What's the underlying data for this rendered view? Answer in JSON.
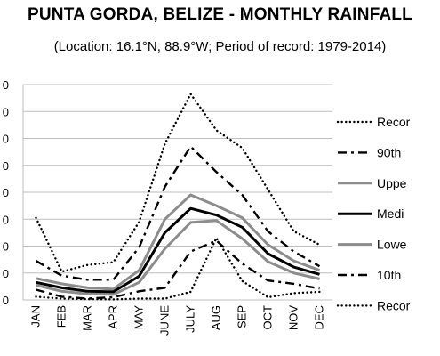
{
  "chart_data": {
    "type": "line",
    "title": "PUNTA GORDA, BELIZE - MONTHLY RAINFALL",
    "subtitle": "(Location: 16.1°N, 88.9°W; Period of record: 1979-2014)",
    "categories": [
      "JAN",
      "FEB",
      "MAR",
      "APR",
      "MAY",
      "JUNE",
      "JULY",
      "AUG",
      "SEP",
      "OCT",
      "NOV",
      "DEC"
    ],
    "y_ticks": [
      "0",
      "0",
      "0",
      "0",
      "0",
      "0",
      "0",
      "0",
      "0"
    ],
    "grid": true,
    "legend_position": "right",
    "series": [
      {
        "name": "Recor",
        "style": "record-high",
        "color": "#000000",
        "dash": "dot",
        "values": [
          3.05,
          1.05,
          1.3,
          1.4,
          2.9,
          5.8,
          7.65,
          6.3,
          5.65,
          4.1,
          2.55,
          2.05
        ]
      },
      {
        "name": "90th",
        "style": "90th",
        "color": "#000000",
        "dash": "dashdot",
        "values": [
          1.45,
          0.9,
          0.75,
          0.75,
          1.95,
          4.2,
          5.7,
          4.75,
          3.9,
          2.55,
          1.8,
          1.25
        ]
      },
      {
        "name": "Uppe",
        "style": "upper-quartile",
        "color": "#8c8c8c",
        "dash": "solid",
        "values": [
          0.8,
          0.6,
          0.45,
          0.4,
          1.1,
          3.0,
          3.9,
          3.5,
          3.05,
          2.05,
          1.45,
          1.1
        ]
      },
      {
        "name": "Medi",
        "style": "median",
        "color": "#000000",
        "dash": "solid",
        "values": [
          0.65,
          0.45,
          0.32,
          0.3,
          0.88,
          2.5,
          3.4,
          3.15,
          2.7,
          1.72,
          1.22,
          0.95
        ]
      },
      {
        "name": "Lowe",
        "style": "lower-quartile",
        "color": "#8c8c8c",
        "dash": "solid",
        "values": [
          0.55,
          0.32,
          0.22,
          0.2,
          0.65,
          1.9,
          2.88,
          2.95,
          2.28,
          1.42,
          1.0,
          0.78
        ]
      },
      {
        "name": "10th",
        "style": "10th",
        "color": "#000000",
        "dash": "dashdot",
        "values": [
          0.38,
          0.12,
          0.05,
          0.1,
          0.32,
          0.45,
          1.8,
          2.2,
          1.35,
          0.72,
          0.6,
          0.42
        ]
      },
      {
        "name": "Recor",
        "style": "record-low",
        "color": "#000000",
        "dash": "dot",
        "values": [
          0.12,
          0.05,
          0.03,
          0.02,
          0.05,
          0.05,
          0.3,
          2.3,
          0.7,
          0.1,
          0.25,
          0.3
        ]
      }
    ],
    "ylim": [
      0,
      8
    ]
  }
}
